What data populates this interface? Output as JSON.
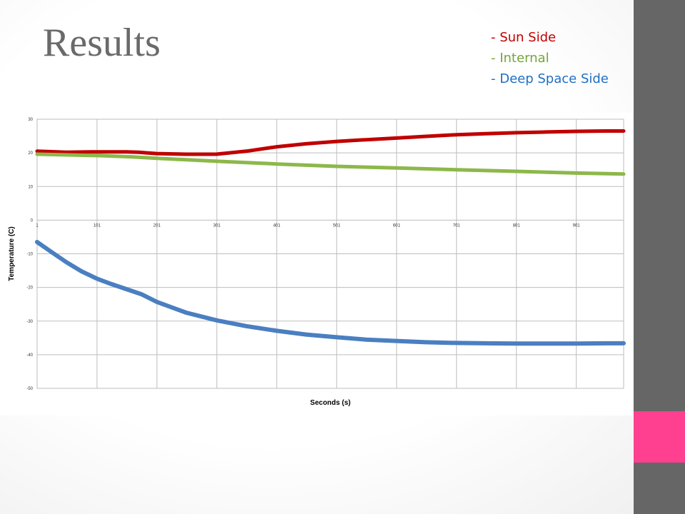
{
  "slide": {
    "title": "Results",
    "legend": [
      {
        "label": "- Sun Side",
        "color": "#c00000"
      },
      {
        "label": "- Internal",
        "color": "#77a43a"
      },
      {
        "label": "- Deep Space Side",
        "color": "#1f6fc4"
      }
    ],
    "side_bar_color": "#666666",
    "accent_color": "#ff3f8f"
  },
  "chart_data": {
    "type": "line",
    "xlabel": "Seconds (s)",
    "ylabel": "Temperature (C)",
    "xlim": [
      1,
      980
    ],
    "ylim": [
      -50,
      30
    ],
    "x_ticks": [
      1,
      101,
      201,
      301,
      401,
      501,
      601,
      701,
      801,
      901
    ],
    "y_ticks": [
      30,
      20,
      10,
      0,
      -10,
      -20,
      -30,
      -40,
      -50
    ],
    "grid": true,
    "legend": "none",
    "series": [
      {
        "color": "#c00000",
        "x": [
          1,
          50,
          101,
          150,
          170,
          200,
          250,
          300,
          350,
          401,
          450,
          501,
          550,
          601,
          650,
          701,
          750,
          801,
          850,
          901,
          950,
          980
        ],
        "y": [
          20.5,
          20.2,
          20.3,
          20.3,
          20.2,
          19.8,
          19.6,
          19.6,
          20.5,
          21.8,
          22.7,
          23.4,
          23.9,
          24.4,
          24.9,
          25.4,
          25.7,
          26.0,
          26.2,
          26.4,
          26.5,
          26.5
        ]
      },
      {
        "color": "#8cb84a",
        "x": [
          1,
          101,
          160,
          201,
          301,
          401,
          501,
          601,
          701,
          801,
          901,
          980
        ],
        "y": [
          19.6,
          19.2,
          18.8,
          18.4,
          17.5,
          16.7,
          16.0,
          15.5,
          15.0,
          14.5,
          14.0,
          13.7
        ]
      },
      {
        "color": "#4a7fc1",
        "x": [
          1,
          25,
          50,
          75,
          101,
          125,
          150,
          175,
          201,
          250,
          301,
          350,
          401,
          450,
          501,
          550,
          601,
          650,
          701,
          750,
          801,
          850,
          901,
          950,
          980
        ],
        "y": [
          -6.5,
          -9.5,
          -12.5,
          -15.2,
          -17.4,
          -19.0,
          -20.5,
          -22.0,
          -24.3,
          -27.5,
          -29.8,
          -31.5,
          -32.9,
          -34.0,
          -34.8,
          -35.5,
          -35.9,
          -36.3,
          -36.5,
          -36.6,
          -36.7,
          -36.7,
          -36.7,
          -36.6,
          -36.6
        ]
      }
    ]
  }
}
